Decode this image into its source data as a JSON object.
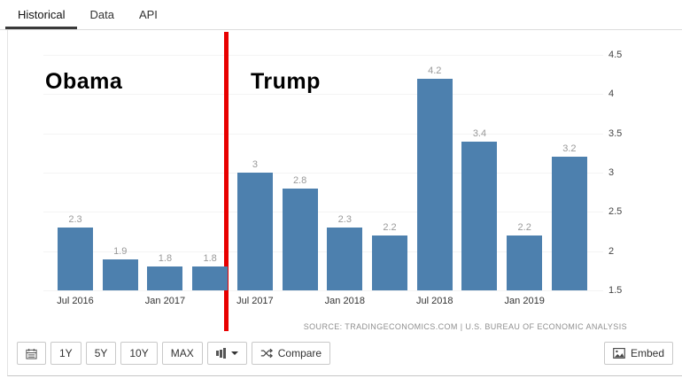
{
  "tabs": {
    "items": [
      {
        "label": "Historical",
        "active": true
      },
      {
        "label": "Data",
        "active": false
      },
      {
        "label": "API",
        "active": false
      }
    ]
  },
  "annotations": {
    "obama": "Obama",
    "trump": "Trump",
    "divider_color": "#e80000"
  },
  "chart_data": {
    "type": "bar",
    "ylim": [
      1.5,
      4.5
    ],
    "yticks": [
      "4.5",
      "4",
      "3.5",
      "3",
      "2.5",
      "2",
      "1.5"
    ],
    "bar_color": "#4d80ae",
    "value_label_color": "#999999",
    "bars": [
      {
        "value": 2.3,
        "label": "2.3",
        "xlabel": "Jul 2016"
      },
      {
        "value": 1.9,
        "label": "1.9",
        "xlabel": ""
      },
      {
        "value": 1.8,
        "label": "1.8",
        "xlabel": "Jan 2017"
      },
      {
        "value": 1.8,
        "label": "1.8",
        "xlabel": ""
      },
      {
        "value": 3.0,
        "label": "3",
        "xlabel": "Jul 2017"
      },
      {
        "value": 2.8,
        "label": "2.8",
        "xlabel": ""
      },
      {
        "value": 2.3,
        "label": "2.3",
        "xlabel": "Jan 2018"
      },
      {
        "value": 2.2,
        "label": "2.2",
        "xlabel": ""
      },
      {
        "value": 4.2,
        "label": "4.2",
        "xlabel": "Jul 2018"
      },
      {
        "value": 3.4,
        "label": "3.4",
        "xlabel": ""
      },
      {
        "value": 2.2,
        "label": "2.2",
        "xlabel": "Jan 2019"
      },
      {
        "value": 3.2,
        "label": "3.2",
        "xlabel": ""
      }
    ],
    "source": "SOURCE:   TRADINGECONOMICS.COM   |   U.S. BUREAU  OF  ECONOMIC  ANALYSIS"
  },
  "toolbar": {
    "y1": "1Y",
    "y5": "5Y",
    "y10": "10Y",
    "max": "MAX",
    "compare": "Compare",
    "embed": "Embed"
  }
}
